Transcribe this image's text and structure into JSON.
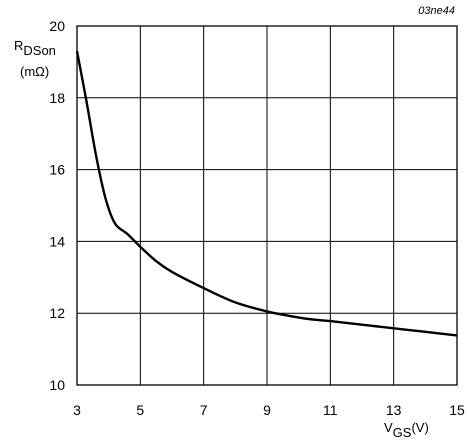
{
  "figure_code": "03ne44",
  "y_axis_label": {
    "symbol": "R",
    "subscript": "DSon",
    "unit": "(mΩ)"
  },
  "x_axis_label": {
    "symbol": "V",
    "subscript": "GS",
    "unit": "(V)"
  },
  "chart_data": {
    "type": "line",
    "title": "",
    "xlabel": "VGS (V)",
    "ylabel": "RDSon (mΩ)",
    "xlim": [
      3,
      15
    ],
    "ylim": [
      10,
      20
    ],
    "x_ticks": [
      3,
      5,
      7,
      9,
      11,
      13,
      15
    ],
    "y_ticks": [
      10,
      12,
      14,
      16,
      18,
      20
    ],
    "grid": true,
    "legend": "none",
    "series": [
      {
        "x": [
          3.0,
          3.3,
          3.6,
          3.9,
          4.2,
          4.6,
          5.0,
          5.5,
          6.0,
          7.0,
          8.0,
          9.0,
          10.0,
          10.5,
          11.0,
          12.0,
          13.0,
          14.0,
          15.0
        ],
        "y": [
          19.3,
          17.9,
          16.4,
          15.2,
          14.5,
          14.2,
          13.85,
          13.45,
          13.15,
          12.7,
          12.3,
          12.05,
          11.88,
          11.82,
          11.78,
          11.68,
          11.58,
          11.48,
          11.38
        ],
        "color": "#000000"
      }
    ]
  }
}
